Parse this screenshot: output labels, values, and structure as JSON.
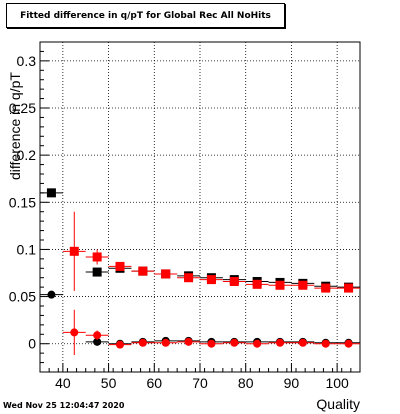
{
  "chart_data": {
    "type": "scatter",
    "title": "Fitted difference in q/pT for Global Rec All NoHits",
    "xlabel": "Quality",
    "ylabel": "difference in q/pT",
    "xlim": [
      35,
      105
    ],
    "ylim": [
      -0.03,
      0.32
    ],
    "xticks": [
      40,
      50,
      60,
      70,
      80,
      90,
      100
    ],
    "yticks": [
      0,
      0.05,
      0.1,
      0.15,
      0.2,
      0.25,
      0.3
    ],
    "ytick_labels": [
      "0",
      "0.05",
      "0.1",
      "0.15",
      "0.2",
      "0.25",
      "0.3"
    ],
    "grid": true,
    "series": [
      {
        "marker": "square",
        "color": "#000000",
        "x": [
          37.5,
          47.5,
          52.5,
          57.5,
          62.5,
          67.5,
          72.5,
          77.5,
          82.5,
          87.5,
          92.5,
          97.5,
          102.5
        ],
        "y": [
          0.16,
          0.076,
          0.08,
          0.077,
          0.074,
          0.072,
          0.07,
          0.068,
          0.066,
          0.065,
          0.064,
          0.061,
          0.06
        ],
        "yerr": [
          0.003,
          0.004,
          0.003,
          0.002,
          0.002,
          0.002,
          0.002,
          0.002,
          0.002,
          0.002,
          0.002,
          0.002,
          0.002
        ]
      },
      {
        "marker": "square",
        "color": "#ff0000",
        "x": [
          42.5,
          47.5,
          52.5,
          57.5,
          62.5,
          67.5,
          72.5,
          77.5,
          82.5,
          87.5,
          92.5,
          97.5,
          102.5
        ],
        "y": [
          0.098,
          0.092,
          0.082,
          0.077,
          0.074,
          0.07,
          0.068,
          0.066,
          0.063,
          0.062,
          0.062,
          0.059,
          0.059
        ],
        "yerr": [
          0.042,
          0.008,
          0.004,
          0.003,
          0.003,
          0.002,
          0.002,
          0.002,
          0.002,
          0.002,
          0.002,
          0.002,
          0.002
        ]
      },
      {
        "marker": "circle",
        "color": "#000000",
        "x": [
          37.5,
          47.5,
          52.5,
          57.5,
          62.5,
          67.5,
          72.5,
          77.5,
          82.5,
          87.5,
          92.5,
          97.5,
          102.5
        ],
        "y": [
          0.052,
          0.002,
          0.0,
          0.002,
          0.003,
          0.003,
          0.002,
          0.002,
          0.002,
          0.002,
          0.002,
          0.001,
          0.001
        ],
        "yerr": [
          0.002,
          0.002,
          0.001,
          0.001,
          0.001,
          0.001,
          0.001,
          0.001,
          0.001,
          0.001,
          0.001,
          0.001,
          0.001
        ]
      },
      {
        "marker": "circle",
        "color": "#ff0000",
        "x": [
          42.5,
          47.5,
          52.5,
          57.5,
          62.5,
          67.5,
          72.5,
          77.5,
          82.5,
          87.5,
          92.5,
          97.5,
          102.5
        ],
        "y": [
          0.012,
          0.009,
          -0.001,
          0.001,
          0.001,
          0.002,
          0.0,
          0.001,
          0.0,
          0.001,
          0.001,
          0.0,
          0.0
        ],
        "yerr": [
          0.024,
          0.005,
          0.002,
          0.002,
          0.002,
          0.002,
          0.002,
          0.002,
          0.002,
          0.002,
          0.002,
          0.002,
          0.002
        ]
      }
    ],
    "xerr": 2.5
  },
  "footer": {
    "timestamp": "Wed Nov 25 12:04:47 2020"
  }
}
